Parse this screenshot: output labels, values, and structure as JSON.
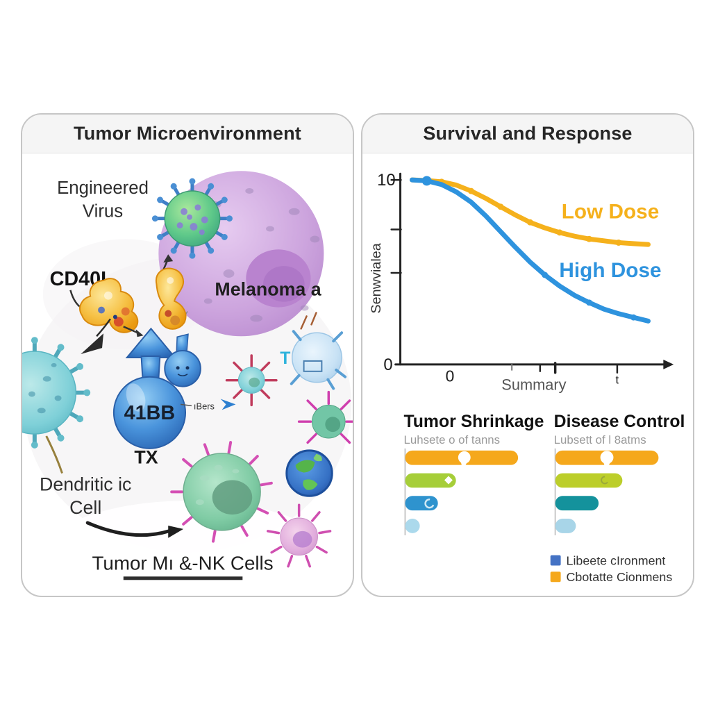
{
  "left_panel": {
    "title": "Tumor Microenvironment",
    "engineered_virus_line1": "Engineered",
    "engineered_virus_line2": "Virus",
    "cd40l_label": "CD40L",
    "melanoma_label": "Melanoma a",
    "balloon_label": "41BB",
    "tx_label": "TX",
    "receptor_label": "ıBers",
    "t_cell_label": "T",
    "dendritic_line1": "Dendritic ic",
    "dendritic_line2": "Cell",
    "bottom_label": "Tumor Mı &-NK Cells"
  },
  "right_panel": {
    "title": "Survival and Response",
    "survival_chart": {
      "y_top_tick": "10",
      "y_bottom_tick": "0",
      "x_tick_zero": "0",
      "x_tick_t": "t",
      "xlabel": "Summary",
      "ylabel": "Senwvialea",
      "low_dose_label": "Low Dose",
      "high_dose_label": "High Dose"
    },
    "bar_section": {
      "left_title": "Tumor Shrinkage",
      "left_subtitle": "Luhsete o of tanns",
      "right_title": "Disease Control",
      "right_subtitle": "Lubsett of l 8atms"
    },
    "legend": {
      "item1": "Libeete cIronment",
      "item1_color": "#4472C4",
      "item2": "Cbotatte Cionmens",
      "item2_color": "#F5A81C"
    }
  },
  "chart_data": [
    {
      "type": "line",
      "title": "Survival and Response",
      "xlabel": "Summary",
      "ylabel": "Senwvialea",
      "ylim": [
        0,
        10
      ],
      "y_ticks": [
        "10",
        "0"
      ],
      "x_ticks": [
        "0",
        "t"
      ],
      "grid": false,
      "legend_position": "inline-right",
      "series": [
        {
          "name": "Low Dose",
          "color": "#F5B11C",
          "values": [
            10,
            9.97,
            9.9,
            9.72,
            9.4,
            9.0,
            8.55,
            8.1,
            7.7,
            7.4,
            7.15,
            6.95,
            6.8,
            6.7,
            6.6,
            6.55,
            6.5
          ],
          "marker_indices": [
            2,
            4,
            6,
            8,
            10,
            12,
            14
          ]
        },
        {
          "name": "High Dose",
          "color": "#2E93DE",
          "values": [
            10,
            9.95,
            9.75,
            9.35,
            8.8,
            8.05,
            7.2,
            6.35,
            5.55,
            4.85,
            4.25,
            3.75,
            3.35,
            3.0,
            2.75,
            2.55,
            2.35
          ],
          "marker_indices": [
            1,
            9,
            12,
            15
          ]
        }
      ]
    },
    {
      "type": "bar",
      "orientation": "horizontal",
      "title": "Tumor Shrinkage",
      "subtitle": "Luhsete o of tanns",
      "values": [
        100,
        45,
        29,
        13
      ],
      "colors": [
        "#F5A81C",
        "#A6CE39",
        "#2E93CE",
        "#ABD9EC"
      ]
    },
    {
      "type": "bar",
      "orientation": "horizontal",
      "title": "Disease Control",
      "subtitle": "Lubsett of l 8atms",
      "values": [
        100,
        65,
        42,
        20
      ],
      "colors": [
        "#F5A81C",
        "#BCCE2A",
        "#14929C",
        "#A8D5E8"
      ]
    }
  ]
}
